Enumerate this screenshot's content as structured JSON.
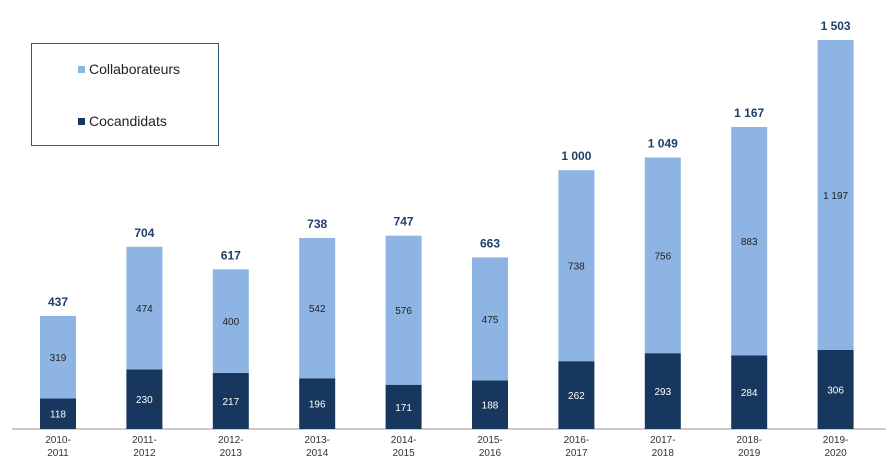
{
  "chart_data": {
    "type": "bar",
    "stacked": true,
    "categories": [
      "2010-\n2011",
      "2011-\n2012",
      "2012-\n2013",
      "2013-\n2014",
      "2014-\n2015",
      "2015-\n2016",
      "2016-\n2017",
      "2017-\n2018",
      "2018-\n2019",
      "2019-\n2020"
    ],
    "series": [
      {
        "name": "Cocandidats",
        "values": [
          118,
          230,
          217,
          196,
          171,
          188,
          262,
          293,
          284,
          306
        ],
        "color": "#17375e",
        "label_color": "#ffffff"
      },
      {
        "name": "Collaborateurs",
        "values": [
          319,
          474,
          400,
          542,
          576,
          475,
          738,
          756,
          883,
          1197
        ],
        "color": "#8eb4e3",
        "label_color": "#222222"
      }
    ],
    "totals": [
      437,
      704,
      617,
      738,
      747,
      663,
      1000,
      1049,
      1167,
      1503
    ],
    "total_labels": [
      "437",
      "704",
      "617",
      "738",
      "747",
      "663",
      "1 000",
      "1 049",
      "1 167",
      "1 503"
    ],
    "value_labels": {
      "Cocandidats": [
        "118",
        "230",
        "217",
        "196",
        "171",
        "188",
        "262",
        "293",
        "284",
        "306"
      ],
      "Collaborateurs": [
        "319",
        "474",
        "400",
        "542",
        "576",
        "475",
        "738",
        "756",
        "883",
        "1 197"
      ]
    },
    "legend": {
      "placement": "top-left",
      "items": [
        "Collaborateurs",
        "Cocandidats"
      ]
    },
    "ylim": [
      0,
      1503
    ],
    "grid": false,
    "title": "",
    "xlabel": "",
    "ylabel": ""
  }
}
